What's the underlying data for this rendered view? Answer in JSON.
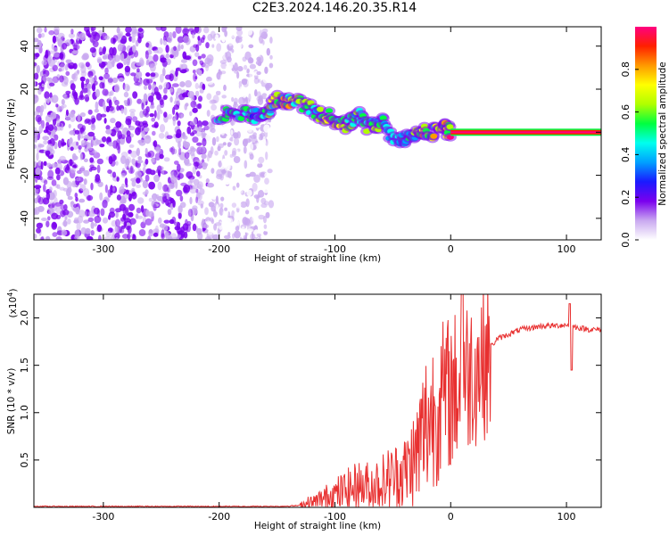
{
  "title": "C2E3.2024.146.20.35.R14",
  "chart_data": [
    {
      "type": "heatmap",
      "xlabel": "Height of straight line (km)",
      "ylabel": "Frequency (Hz)",
      "xlim": [
        -360,
        130
      ],
      "ylim": [
        -50,
        49
      ],
      "xticks": [
        -300,
        -200,
        -100,
        0,
        100
      ],
      "yticks": [
        -40,
        -20,
        0,
        20,
        40
      ],
      "colorbar": {
        "label": "Normalized spectral amplitude",
        "range": [
          0,
          1
        ],
        "ticks": [
          0.0,
          0.2,
          0.4,
          0.6,
          0.8
        ],
        "colors": [
          "#ffffff",
          "#c9a8f0",
          "#7a00ee",
          "#1a1aff",
          "#00a0ff",
          "#00ffee",
          "#00ff40",
          "#b0ff00",
          "#ffff00",
          "#ff9900",
          "#ff2000",
          "#ff0080"
        ]
      },
      "features": {
        "noise_region_x": [
          -360,
          -155
        ],
        "tone_line": {
          "x_start": 0,
          "x_end": 130,
          "frequency": 0
        },
        "track": [
          {
            "x": -200,
            "y": 8,
            "amp": 0.55
          },
          {
            "x": -185,
            "y": 9,
            "amp": 0.6
          },
          {
            "x": -170,
            "y": 8,
            "amp": 0.5
          },
          {
            "x": -160,
            "y": 8,
            "amp": 0.55
          },
          {
            "x": -150,
            "y": 15,
            "amp": 0.7
          },
          {
            "x": -140,
            "y": 15,
            "amp": 0.75
          },
          {
            "x": -125,
            "y": 12,
            "amp": 0.6
          },
          {
            "x": -110,
            "y": 8,
            "amp": 0.65
          },
          {
            "x": -100,
            "y": 6,
            "amp": 0.7
          },
          {
            "x": -90,
            "y": 3,
            "amp": 0.65
          },
          {
            "x": -80,
            "y": 8,
            "amp": 0.6
          },
          {
            "x": -70,
            "y": 2,
            "amp": 0.6
          },
          {
            "x": -60,
            "y": 5,
            "amp": 0.55
          },
          {
            "x": -45,
            "y": -5,
            "amp": 0.5
          },
          {
            "x": -35,
            "y": -2,
            "amp": 0.55
          },
          {
            "x": -25,
            "y": 0,
            "amp": 0.7
          },
          {
            "x": -15,
            "y": 0,
            "amp": 0.8
          },
          {
            "x": -5,
            "y": 2,
            "amp": 0.75
          },
          {
            "x": 0,
            "y": 0,
            "amp": 0.95
          }
        ]
      }
    },
    {
      "type": "line",
      "xlabel": "Height of straight line (km)",
      "ylabel": "SNR (10 * v/v)",
      "yscale_label": "(x10",
      "yscale_exp": "4",
      "yscale_close": ")",
      "xlim": [
        -360,
        130
      ],
      "ylim": [
        0,
        2.25
      ],
      "xticks": [
        -300,
        -200,
        -100,
        0,
        100
      ],
      "yticks": [
        0.5,
        1.0,
        1.5,
        2.0
      ],
      "yticklabels": [
        "0.5",
        "1.0",
        "1.5",
        "2.0"
      ],
      "color": "#e83030",
      "series": [
        {
          "x": [
            -360,
            -300,
            -250,
            -200,
            -150,
            -130,
            -120,
            -110,
            -100,
            -90,
            -80,
            -70,
            -60,
            -50,
            -40,
            -30,
            -25,
            -20,
            -15,
            -10,
            -5,
            0,
            5,
            10,
            15,
            20,
            25,
            30,
            35,
            40,
            50,
            60,
            70,
            80,
            90,
            100,
            110,
            120,
            130
          ],
          "y": [
            0.01,
            0.01,
            0.01,
            0.01,
            0.01,
            0.02,
            0.05,
            0.1,
            0.15,
            0.2,
            0.25,
            0.25,
            0.3,
            0.35,
            0.4,
            0.6,
            0.8,
            1.0,
            1.1,
            1.2,
            1.25,
            1.3,
            1.35,
            1.4,
            1.5,
            1.55,
            1.6,
            1.65,
            1.7,
            1.78,
            1.83,
            1.88,
            1.9,
            1.92,
            1.92,
            1.93,
            1.9,
            1.88,
            1.88
          ]
        }
      ]
    }
  ]
}
